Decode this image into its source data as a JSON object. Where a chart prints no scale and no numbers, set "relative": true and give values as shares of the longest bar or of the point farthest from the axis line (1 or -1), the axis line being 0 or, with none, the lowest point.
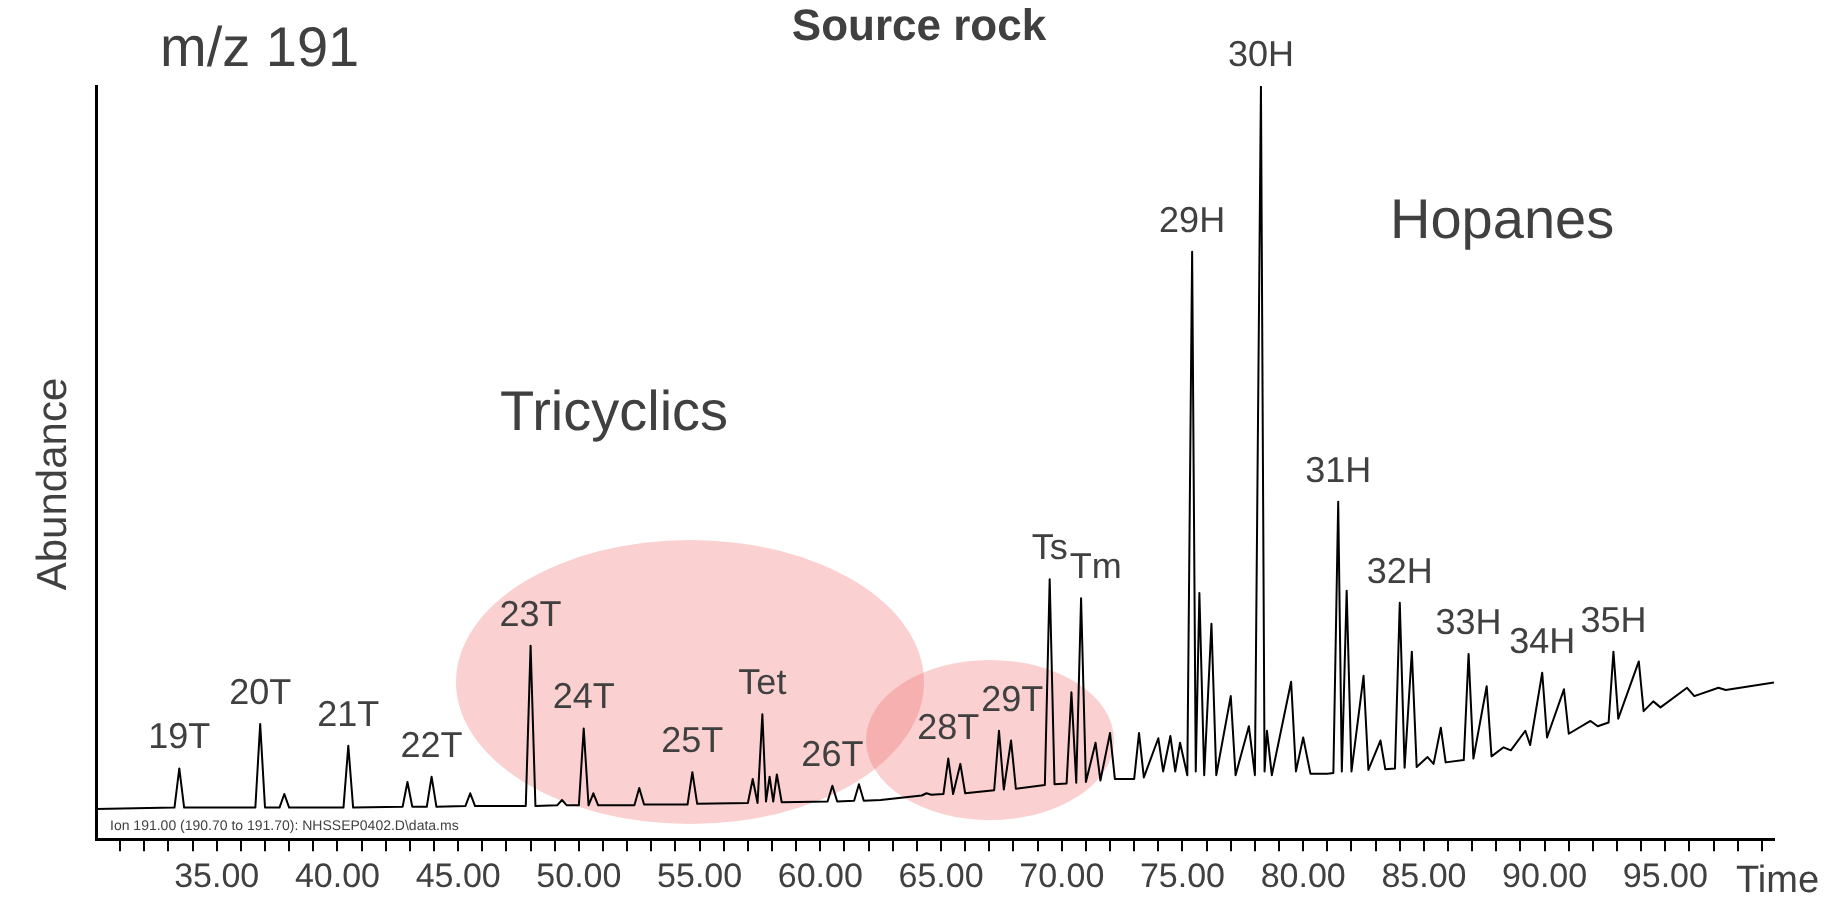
{
  "chart_data": {
    "type": "line",
    "title": "Source rock",
    "xlabel": "Time",
    "ylabel": "Abundance",
    "relative": true,
    "legend": false,
    "grid": false,
    "xlim": [
      30,
      99.5
    ],
    "xticks": [
      {
        "value": 31,
        "label": null
      },
      {
        "value": 32,
        "label": null
      },
      {
        "value": 33,
        "label": null
      },
      {
        "value": 34,
        "label": null
      },
      {
        "value": 35,
        "label": "35.00"
      },
      {
        "value": 36,
        "label": null
      },
      {
        "value": 37,
        "label": null
      },
      {
        "value": 38,
        "label": null
      },
      {
        "value": 39,
        "label": null
      },
      {
        "value": 40,
        "label": "40.00"
      },
      {
        "value": 41,
        "label": null
      },
      {
        "value": 42,
        "label": null
      },
      {
        "value": 43,
        "label": null
      },
      {
        "value": 44,
        "label": null
      },
      {
        "value": 45,
        "label": "45.00"
      },
      {
        "value": 46,
        "label": null
      },
      {
        "value": 47,
        "label": null
      },
      {
        "value": 48,
        "label": null
      },
      {
        "value": 49,
        "label": null
      },
      {
        "value": 50,
        "label": "50.00"
      },
      {
        "value": 51,
        "label": null
      },
      {
        "value": 52,
        "label": null
      },
      {
        "value": 53,
        "label": null
      },
      {
        "value": 54,
        "label": null
      },
      {
        "value": 55,
        "label": "55.00"
      },
      {
        "value": 56,
        "label": null
      },
      {
        "value": 57,
        "label": null
      },
      {
        "value": 58,
        "label": null
      },
      {
        "value": 59,
        "label": null
      },
      {
        "value": 60,
        "label": "60.00"
      },
      {
        "value": 61,
        "label": null
      },
      {
        "value": 62,
        "label": null
      },
      {
        "value": 63,
        "label": null
      },
      {
        "value": 64,
        "label": null
      },
      {
        "value": 65,
        "label": "65.00"
      },
      {
        "value": 66,
        "label": null
      },
      {
        "value": 67,
        "label": null
      },
      {
        "value": 68,
        "label": null
      },
      {
        "value": 69,
        "label": null
      },
      {
        "value": 70,
        "label": "70.00"
      },
      {
        "value": 71,
        "label": null
      },
      {
        "value": 72,
        "label": null
      },
      {
        "value": 73,
        "label": null
      },
      {
        "value": 74,
        "label": null
      },
      {
        "value": 75,
        "label": "75.00"
      },
      {
        "value": 76,
        "label": null
      },
      {
        "value": 77,
        "label": null
      },
      {
        "value": 78,
        "label": null
      },
      {
        "value": 79,
        "label": null
      },
      {
        "value": 80,
        "label": "80.00"
      },
      {
        "value": 81,
        "label": null
      },
      {
        "value": 82,
        "label": null
      },
      {
        "value": 83,
        "label": null
      },
      {
        "value": 84,
        "label": null
      },
      {
        "value": 85,
        "label": "85.00"
      },
      {
        "value": 86,
        "label": null
      },
      {
        "value": 87,
        "label": null
      },
      {
        "value": 88,
        "label": null
      },
      {
        "value": 89,
        "label": null
      },
      {
        "value": 90,
        "label": "90.00"
      },
      {
        "value": 91,
        "label": null
      },
      {
        "value": 92,
        "label": null
      },
      {
        "value": 93,
        "label": null
      },
      {
        "value": 94,
        "label": null
      },
      {
        "value": 95,
        "label": "95.00"
      },
      {
        "value": 96,
        "label": null
      },
      {
        "value": 97,
        "label": null
      },
      {
        "value": 98,
        "label": null
      },
      {
        "value": 99,
        "label": null
      }
    ],
    "x": [
      30.0,
      33.25,
      33.45,
      33.65,
      36.6,
      36.8,
      37.0,
      37.6,
      37.8,
      38.0,
      40.25,
      40.45,
      40.65,
      42.7,
      42.9,
      43.1,
      43.7,
      43.9,
      44.1,
      45.3,
      45.5,
      45.7,
      47.8,
      48.0,
      48.2,
      49.1,
      49.3,
      49.5,
      50.0,
      50.2,
      50.4,
      50.6,
      50.8,
      52.3,
      52.5,
      52.7,
      54.5,
      54.7,
      54.9,
      57.0,
      57.2,
      57.4,
      57.6,
      57.75,
      57.9,
      58.05,
      58.2,
      58.4,
      60.3,
      60.5,
      60.7,
      61.4,
      61.6,
      61.8,
      62.5,
      64.2,
      64.4,
      64.6,
      65.1,
      65.3,
      65.5,
      65.8,
      66.0,
      67.2,
      67.4,
      67.6,
      67.9,
      68.1,
      69.3,
      69.5,
      69.7,
      70.2,
      70.4,
      70.6,
      70.8,
      71.0,
      71.4,
      71.6,
      72.0,
      72.2,
      73.0,
      73.2,
      73.4,
      74.0,
      74.2,
      74.5,
      74.7,
      74.9,
      75.2,
      75.4,
      75.55,
      75.7,
      75.9,
      76.2,
      76.4,
      77.0,
      77.2,
      77.75,
      78.0,
      78.25,
      78.4,
      78.5,
      78.7,
      79.5,
      79.7,
      80.0,
      80.3,
      81.0,
      81.25,
      81.45,
      81.6,
      81.8,
      82.0,
      82.5,
      82.7,
      83.2,
      83.4,
      83.8,
      84.0,
      84.2,
      84.5,
      84.7,
      85.15,
      85.4,
      85.7,
      85.9,
      86.65,
      86.85,
      87.05,
      87.6,
      87.8,
      88.3,
      88.6,
      89.2,
      89.4,
      89.9,
      90.1,
      90.8,
      91.0,
      91.9,
      92.2,
      92.65,
      92.85,
      93.05,
      93.9,
      94.1,
      94.5,
      94.8,
      95.9,
      96.2,
      97.2,
      97.5,
      99.5
    ],
    "series": [
      {
        "color": "#000000",
        "values": [
          0.04,
          0.042,
          0.094,
          0.042,
          0.042,
          0.153,
          0.042,
          0.042,
          0.06,
          0.042,
          0.042,
          0.124,
          0.042,
          0.043,
          0.076,
          0.043,
          0.043,
          0.083,
          0.043,
          0.044,
          0.061,
          0.044,
          0.044,
          0.257,
          0.044,
          0.045,
          0.052,
          0.045,
          0.045,
          0.147,
          0.045,
          0.061,
          0.045,
          0.045,
          0.068,
          0.046,
          0.046,
          0.089,
          0.047,
          0.048,
          0.08,
          0.048,
          0.166,
          0.05,
          0.083,
          0.05,
          0.086,
          0.049,
          0.05,
          0.071,
          0.05,
          0.051,
          0.073,
          0.051,
          0.052,
          0.058,
          0.061,
          0.059,
          0.06,
          0.107,
          0.06,
          0.1,
          0.061,
          0.065,
          0.144,
          0.066,
          0.131,
          0.067,
          0.072,
          0.345,
          0.073,
          0.074,
          0.195,
          0.075,
          0.32,
          0.076,
          0.128,
          0.078,
          0.141,
          0.08,
          0.08,
          0.141,
          0.082,
          0.134,
          0.09,
          0.137,
          0.09,
          0.128,
          0.085,
          0.78,
          0.09,
          0.327,
          0.085,
          0.286,
          0.085,
          0.19,
          0.085,
          0.15,
          0.085,
          1,
          0.09,
          0.144,
          0.085,
          0.209,
          0.09,
          0.135,
          0.087,
          0.087,
          0.088,
          0.448,
          0.09,
          0.33,
          0.09,
          0.217,
          0.092,
          0.131,
          0.093,
          0.094,
          0.314,
          0.095,
          0.249,
          0.096,
          0.109,
          0.1,
          0.148,
          0.102,
          0.105,
          0.246,
          0.107,
          0.203,
          0.11,
          0.122,
          0.118,
          0.144,
          0.125,
          0.221,
          0.135,
          0.199,
          0.14,
          0.157,
          0.15,
          0.155,
          0.249,
          0.16,
          0.236,
          0.17,
          0.183,
          0.175,
          0.201,
          0.19,
          0.201,
          0.198,
          0.208
        ]
      }
    ],
    "annotations": [
      "m/z 191",
      "Tricyclics",
      "Hopanes",
      "Ion 191.00 (190.70 to 191.70): NHSSEP0402.D\\data.ms",
      {
        "text": "19T",
        "x": 33.45,
        "y": 0.094
      },
      {
        "text": "20T",
        "x": 36.8,
        "y": 0.153
      },
      {
        "text": "21T",
        "x": 40.45,
        "y": 0.124
      },
      {
        "text": "22T",
        "x": 43.9,
        "y": 0.083
      },
      {
        "text": "23T",
        "x": 48.0,
        "y": 0.257
      },
      {
        "text": "24T",
        "x": 50.2,
        "y": 0.147
      },
      {
        "text": "25T",
        "x": 54.7,
        "y": 0.089
      },
      {
        "text": "Tet",
        "x": 57.6,
        "y": 0.166
      },
      {
        "text": "26T",
        "x": 60.5,
        "y": 0.071
      },
      {
        "text": "28T",
        "x": 65.3,
        "y": 0.107
      },
      {
        "text": "29T",
        "x": 67.4,
        "y": 0.144
      },
      {
        "text": "Ts",
        "x": 69.5,
        "y": 0.345
      },
      {
        "text": "Tm",
        "x": 70.8,
        "y": 0.32
      },
      {
        "text": "29H",
        "x": 75.4,
        "y": 0.78
      },
      {
        "text": "30H",
        "x": 78.25,
        "y": 1
      },
      {
        "text": "31H",
        "x": 81.45,
        "y": 0.448
      },
      {
        "text": "32H",
        "x": 84.0,
        "y": 0.314
      },
      {
        "text": "33H",
        "x": 86.85,
        "y": 0.246
      },
      {
        "text": "34H",
        "x": 89.9,
        "y": 0.221
      },
      {
        "text": "35H",
        "x": 92.85,
        "y": 0.249
      }
    ]
  }
}
